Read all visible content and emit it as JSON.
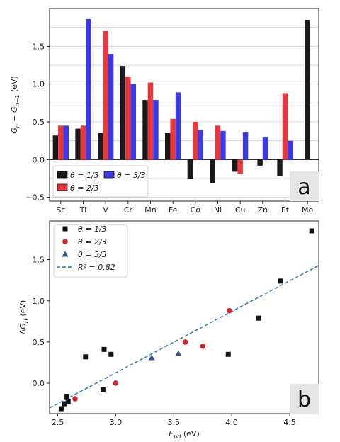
{
  "chart_data": [
    {
      "type": "bar",
      "panel_label": "a",
      "ylabel": "G_n − G_{n−1} (eV)",
      "categories": [
        "Sc",
        "Ti",
        "V",
        "Cr",
        "Mn",
        "Fe",
        "Co",
        "Ni",
        "Cu",
        "Zn",
        "Pt",
        "Mo"
      ],
      "series": [
        {
          "name": "θ = 1/3",
          "color": "#1a1a1a",
          "values": [
            0.32,
            0.41,
            0.35,
            1.24,
            0.79,
            0.35,
            -0.25,
            -0.31,
            -0.16,
            -0.08,
            -0.22,
            1.85
          ]
        },
        {
          "name": "θ = 2/3",
          "color": "#e8383d",
          "values": [
            0.45,
            0.45,
            1.7,
            1.1,
            1.02,
            0.54,
            0.5,
            0.45,
            -0.19,
            null,
            0.88,
            null
          ]
        },
        {
          "name": "θ = 3/3",
          "color": "#3a3ae8",
          "values": [
            0.45,
            1.86,
            1.4,
            1.0,
            0.79,
            0.89,
            0.39,
            0.38,
            0.36,
            0.3,
            0.25,
            null
          ]
        }
      ],
      "ylim": [
        -0.55,
        2.0
      ],
      "yticks": [
        -0.5,
        0.0,
        0.5,
        1.0,
        1.5
      ],
      "ytick_labels": [
        "−0.5",
        "0.0",
        "0.5",
        "1.0",
        "1.5"
      ],
      "grid": "horizontal",
      "legend": "bottom-left"
    },
    {
      "type": "scatter",
      "panel_label": "b",
      "xlabel": "E_pd (eV)",
      "ylabel": "ΔG_H (eV)",
      "xlim": [
        2.43,
        4.75
      ],
      "ylim": [
        -0.37,
        1.97
      ],
      "xticks": [
        2.5,
        3.0,
        3.5,
        4.0,
        4.5
      ],
      "xtick_labels": [
        "2.5",
        "3.0",
        "3.5",
        "4.0",
        "4.5"
      ],
      "yticks": [
        0.0,
        0.5,
        1.0,
        1.5
      ],
      "ytick_labels": [
        "0.0",
        "0.5",
        "1.0",
        "1.5"
      ],
      "grid": "off",
      "legend": "top-left",
      "series": [
        {
          "name": "θ = 1/3",
          "marker": "square",
          "color": "#111111",
          "points": [
            [
              2.53,
              -0.31
            ],
            [
              2.56,
              -0.25
            ],
            [
              2.58,
              -0.16
            ],
            [
              2.59,
              -0.22
            ],
            [
              2.74,
              0.32
            ],
            [
              2.9,
              0.41
            ],
            [
              2.89,
              -0.08
            ],
            [
              2.96,
              0.35
            ],
            [
              3.97,
              0.35
            ],
            [
              4.23,
              0.79
            ],
            [
              4.42,
              1.24
            ],
            [
              4.69,
              1.85
            ]
          ]
        },
        {
          "name": "θ = 2/3",
          "marker": "circle",
          "color": "#d62728",
          "points": [
            [
              2.65,
              -0.19
            ],
            [
              3.0,
              0.0
            ],
            [
              3.6,
              0.5
            ],
            [
              3.75,
              0.45
            ],
            [
              3.98,
              0.88
            ]
          ]
        },
        {
          "name": "θ = 3/3",
          "marker": "triangle",
          "color": "#3b4a8a",
          "points": [
            [
              3.31,
              0.31
            ],
            [
              3.54,
              0.36
            ]
          ]
        },
        {
          "name": "R² = 0.82",
          "type": "fit-line",
          "color": "#2b7bb9",
          "dash": true,
          "line": [
            [
              2.43,
              -0.3
            ],
            [
              4.75,
              1.43
            ]
          ]
        }
      ]
    }
  ]
}
